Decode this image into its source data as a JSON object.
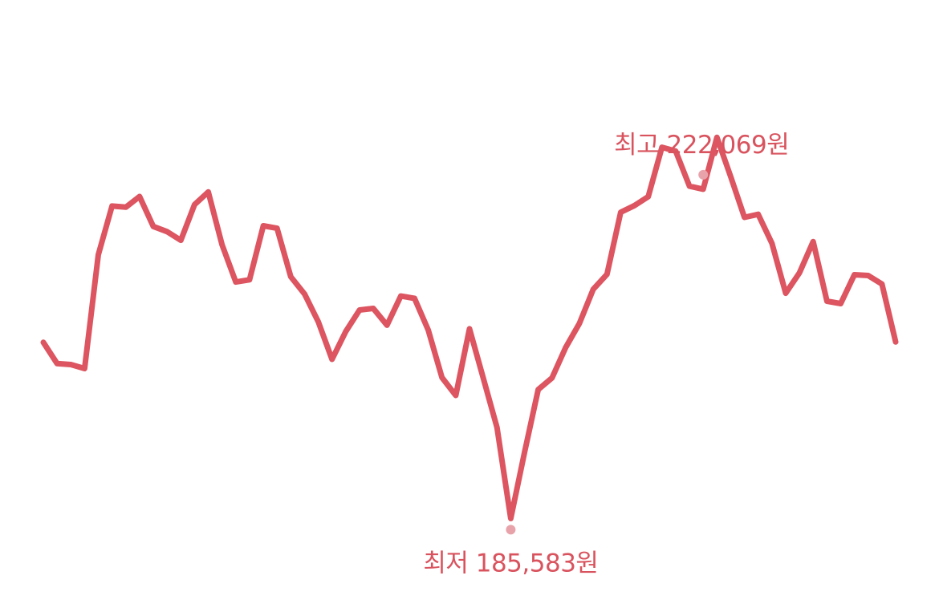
{
  "colors": {
    "line": "#DC5560",
    "marker": "#E8A3AA",
    "label": "#D9535E",
    "background": "#FFFFFF"
  },
  "chart_data": {
    "type": "line",
    "title": "",
    "xlabel": "",
    "ylabel": "",
    "axes_visible": false,
    "grid": false,
    "legend": "none",
    "ylim": [
      180000,
      226000
    ],
    "series": [
      {
        "values": [
          200270,
          198680,
          198600,
          198300,
          206850,
          210510,
          210430,
          211230,
          208980,
          208590,
          207940,
          210620,
          211570,
          207600,
          204800,
          204970,
          209030,
          208840,
          205200,
          203900,
          201810,
          198990,
          201080,
          202700,
          202820,
          201560,
          203750,
          203570,
          201190,
          197620,
          196280,
          201290,
          197590,
          193860,
          187030,
          191980,
          196720,
          197590,
          199890,
          201700,
          204260,
          205380,
          210050,
          210550,
          211220,
          214930,
          214640,
          212010,
          211780,
          215670,
          212710,
          209660,
          209890,
          207720,
          203960,
          205490,
          207840,
          203360,
          203180,
          205350,
          205290,
          204650,
          200300
        ]
      }
    ],
    "annotations": {
      "max": {
        "label": "최고 222,069원",
        "value": 222069,
        "index": 48
      },
      "min": {
        "label": "최저 185,583원",
        "value": 185583,
        "index": 34
      }
    }
  }
}
